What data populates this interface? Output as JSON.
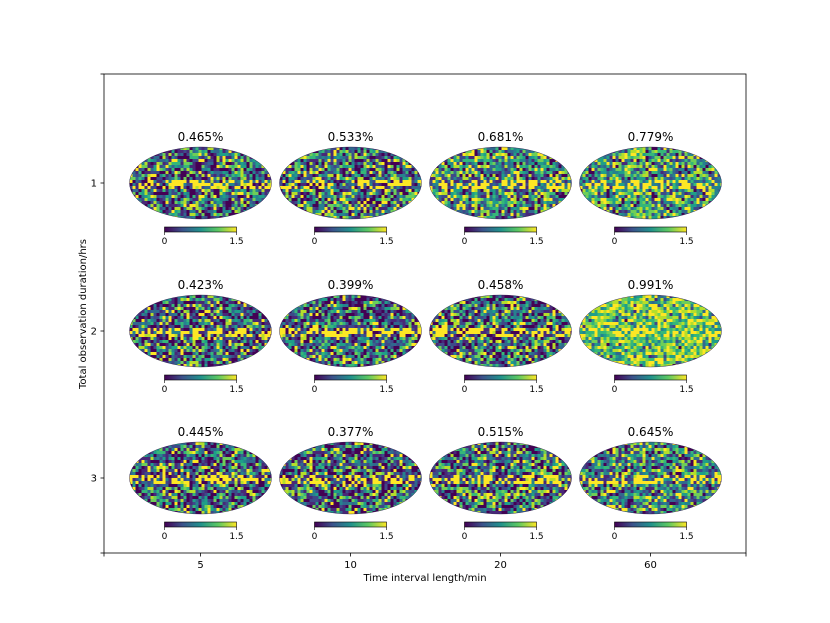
{
  "chart_data": {
    "type": "heatmap",
    "title": "",
    "xlabel": "Time interval length/min",
    "ylabel": "Total observation duration/hrs",
    "x_ticks": [
      "5",
      "10",
      "20",
      "60"
    ],
    "y_ticks": [
      "1",
      "2",
      "3"
    ],
    "grid": false,
    "projection": "mollweide",
    "colormap": "viridis",
    "colorbar": {
      "min": 0,
      "max": 1.5,
      "tick_labels": [
        "0",
        "1.5"
      ]
    },
    "panels": [
      {
        "duration_hrs": 1,
        "interval_min": 5,
        "label": "0.465%"
      },
      {
        "duration_hrs": 1,
        "interval_min": 10,
        "label": "0.533%"
      },
      {
        "duration_hrs": 1,
        "interval_min": 20,
        "label": "0.681%"
      },
      {
        "duration_hrs": 1,
        "interval_min": 60,
        "label": "0.779%"
      },
      {
        "duration_hrs": 2,
        "interval_min": 5,
        "label": "0.423%"
      },
      {
        "duration_hrs": 2,
        "interval_min": 10,
        "label": "0.399%"
      },
      {
        "duration_hrs": 2,
        "interval_min": 20,
        "label": "0.458%"
      },
      {
        "duration_hrs": 2,
        "interval_min": 60,
        "label": "0.991%"
      },
      {
        "duration_hrs": 3,
        "interval_min": 5,
        "label": "0.445%"
      },
      {
        "duration_hrs": 3,
        "interval_min": 10,
        "label": "0.377%"
      },
      {
        "duration_hrs": 3,
        "interval_min": 20,
        "label": "0.515%"
      },
      {
        "duration_hrs": 3,
        "interval_min": 60,
        "label": "0.645%"
      }
    ]
  }
}
